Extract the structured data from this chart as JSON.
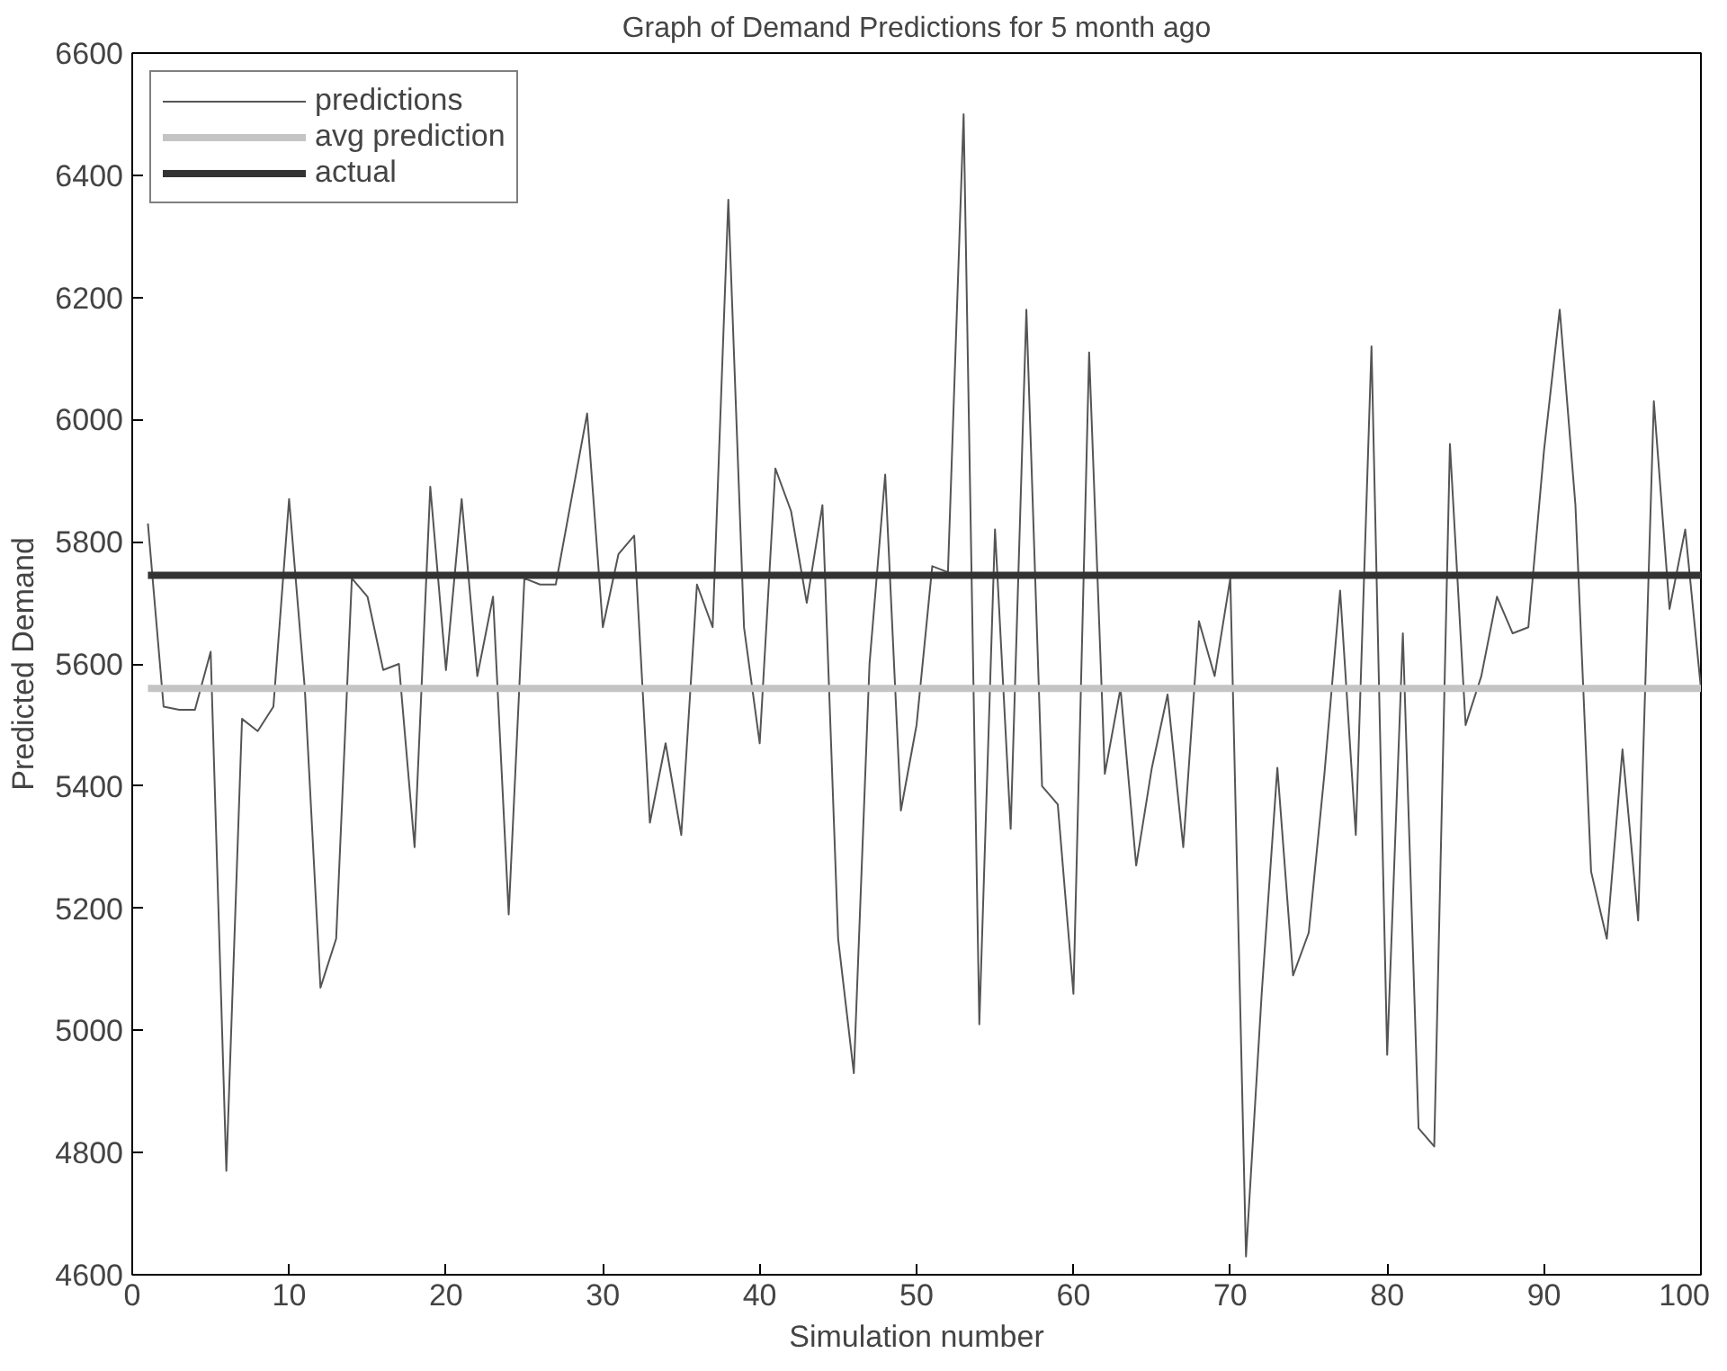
{
  "chart_data": {
    "type": "line",
    "title": "Graph of Demand Predictions for 5 month ago",
    "xlabel": "Simulation number",
    "ylabel": "Predicted Demand",
    "xlim": [
      0,
      100
    ],
    "ylim": [
      4600,
      6600
    ],
    "xticks": [
      0,
      10,
      20,
      30,
      40,
      50,
      60,
      70,
      80,
      90,
      100
    ],
    "yticks": [
      4600,
      4800,
      5000,
      5200,
      5400,
      5600,
      5800,
      6000,
      6200,
      6400,
      6600
    ],
    "grid": false,
    "legend": "top left",
    "series": [
      {
        "name": "predictions",
        "color": "#555555",
        "x": [
          1,
          2,
          3,
          4,
          5,
          6,
          7,
          8,
          9,
          10,
          11,
          12,
          13,
          14,
          15,
          16,
          17,
          18,
          19,
          20,
          21,
          22,
          23,
          24,
          25,
          26,
          27,
          28,
          29,
          30,
          31,
          32,
          33,
          34,
          35,
          36,
          37,
          38,
          39,
          40,
          41,
          42,
          43,
          44,
          45,
          46,
          47,
          48,
          49,
          50,
          51,
          52,
          53,
          54,
          55,
          56,
          57,
          58,
          59,
          60,
          61,
          62,
          63,
          64,
          65,
          66,
          67,
          68,
          69,
          70,
          71,
          72,
          73,
          74,
          75,
          76,
          77,
          78,
          79,
          80,
          81,
          82,
          83,
          84,
          85,
          86,
          87,
          88,
          89,
          90,
          91,
          92,
          93,
          94,
          95,
          96,
          97,
          98,
          99,
          100
        ],
        "values": [
          5830,
          5530,
          5525,
          5525,
          5620,
          4770,
          5510,
          5490,
          5530,
          5870,
          5560,
          5070,
          5150,
          5740,
          5710,
          5590,
          5600,
          5300,
          5890,
          5590,
          5870,
          5580,
          5710,
          5190,
          5740,
          5730,
          5730,
          5870,
          6010,
          5660,
          5780,
          5810,
          5340,
          5470,
          5320,
          5730,
          5660,
          6360,
          5660,
          5470,
          5920,
          5850,
          5700,
          5860,
          5150,
          4930,
          5600,
          5910,
          5360,
          5500,
          5760,
          5750,
          6500,
          5010,
          5820,
          5330,
          6180,
          5400,
          5370,
          5060,
          6110,
          5420,
          5560,
          5270,
          5430,
          5550,
          5300,
          5670,
          5580,
          5740,
          4630,
          5060,
          5430,
          5090,
          5160,
          5420,
          5720,
          5320,
          6120,
          4960,
          5650,
          4840,
          4810,
          5960,
          5500,
          5580,
          5710,
          5650,
          5660,
          5950,
          6180,
          5860,
          5260,
          5150,
          5460,
          5180,
          6030,
          5690,
          5820,
          5560
        ]
      },
      {
        "name": "avg prediction",
        "color": "#c4c4c4",
        "x": [
          1,
          100
        ],
        "values": [
          5560,
          5560
        ]
      },
      {
        "name": "actual",
        "color": "#333333",
        "x": [
          1,
          100
        ],
        "values": [
          5745,
          5745
        ]
      }
    ]
  }
}
